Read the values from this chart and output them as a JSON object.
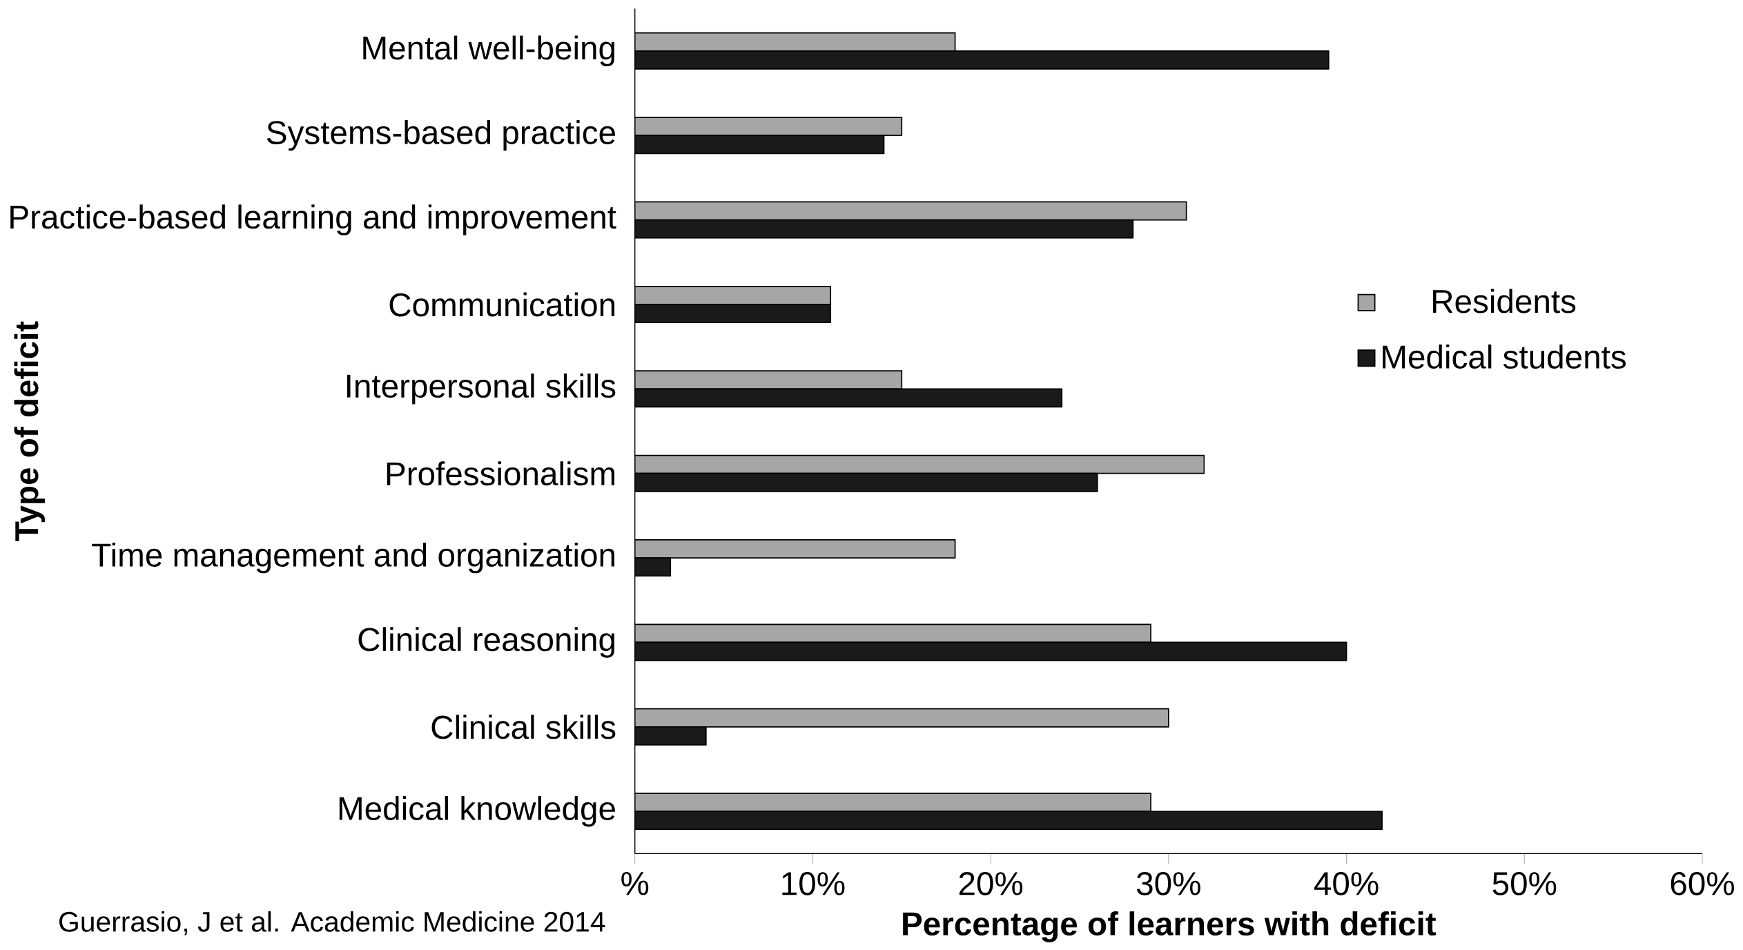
{
  "chart_data": {
    "type": "bar",
    "orientation": "horizontal",
    "xlabel": "Percentage of learners with deficit",
    "ylabel": "Type of deficit",
    "categories": [
      "Mental well-being",
      "Systems-based practice",
      "Practice-based learning and improvement",
      "Communication",
      "Interpersonal skills",
      "Professionalism",
      "Time management and organization",
      "Clinical reasoning",
      "Clinical skills",
      "Medical knowledge"
    ],
    "series": [
      {
        "name": "Residents",
        "color": "#a6a6a6",
        "values": [
          18,
          15,
          31,
          11,
          15,
          32,
          18,
          29,
          30,
          29
        ]
      },
      {
        "name": "Medical students",
        "color": "#1a1a1a",
        "values": [
          39,
          14,
          28,
          11,
          24,
          26,
          2,
          40,
          4,
          42
        ]
      }
    ],
    "xlim": [
      0,
      60
    ],
    "xticks": [
      {
        "value": 0,
        "label": "%"
      },
      {
        "value": 10,
        "label": "10%"
      },
      {
        "value": 20,
        "label": "20%"
      },
      {
        "value": 30,
        "label": "30%"
      },
      {
        "value": 40,
        "label": "40%"
      },
      {
        "value": 50,
        "label": "50%"
      },
      {
        "value": 60,
        "label": "60%"
      }
    ],
    "legend": "right",
    "grid": false,
    "annotations": [
      "Guerrasio, J et al. Academic Medicine 2014"
    ]
  }
}
